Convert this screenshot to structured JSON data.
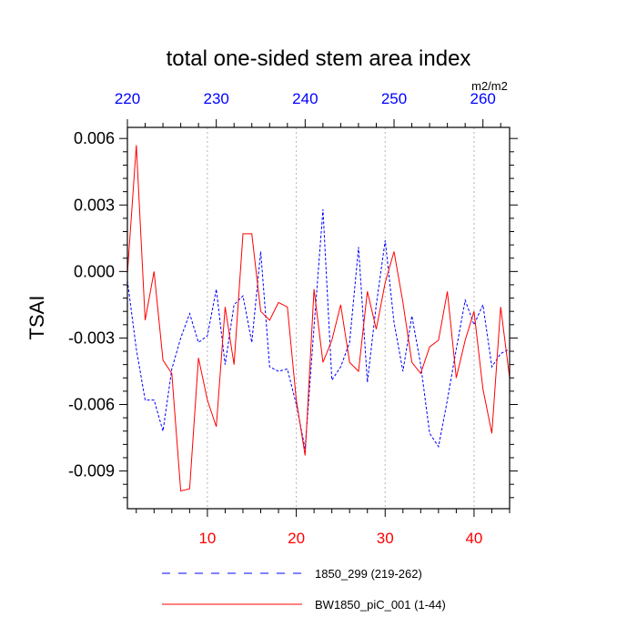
{
  "chart_data": {
    "type": "line",
    "title": "total one-sided stem area index",
    "units": "m2/m2",
    "ylabel": "TSAI",
    "xlabel": "",
    "xlim": [
      1,
      44
    ],
    "ylim": [
      -0.0107,
      0.0065
    ],
    "yticks": [
      0.006,
      0.003,
      0.0,
      -0.003,
      -0.006,
      -0.009
    ],
    "ytick_labels": [
      "0.006",
      "0.003",
      "0.000",
      "-0.003",
      "-0.006",
      "-0.009"
    ],
    "xticks_bottom": [
      10,
      20,
      30,
      40
    ],
    "xtick_labels_bottom": [
      "10",
      "20",
      "30",
      "40"
    ],
    "xticks_top": [
      220,
      230,
      240,
      250,
      260
    ],
    "xtick_labels_top": [
      "220",
      "230",
      "240",
      "250",
      "260"
    ],
    "top_axis_offset": 219,
    "grid": "vertical dotted at bottom major ticks",
    "legend_position": "bottom",
    "colors": {
      "series_blue": "#0000ff",
      "series_red": "#ff0000",
      "bottom_tick_labels": "#ff0000",
      "top_tick_labels": "#0000ff",
      "grid": "#b4b4b4"
    },
    "series": [
      {
        "name": "1850_299 (219-262)",
        "color": "#0000ff",
        "style": "dashed",
        "x": [
          1,
          2,
          3,
          4,
          5,
          6,
          7,
          8,
          9,
          10,
          11,
          12,
          13,
          14,
          15,
          16,
          17,
          18,
          19,
          20,
          21,
          22,
          23,
          24,
          25,
          26,
          27,
          28,
          29,
          30,
          31,
          32,
          33,
          34,
          35,
          36,
          37,
          38,
          39,
          40,
          41,
          42,
          43,
          44
        ],
        "values": [
          -0.0004,
          -0.0035,
          -0.0058,
          -0.0058,
          -0.0072,
          -0.0044,
          -0.003,
          -0.0019,
          -0.0032,
          -0.0029,
          -0.0008,
          -0.0042,
          -0.0015,
          -0.0011,
          -0.0032,
          0.0009,
          -0.0043,
          -0.0045,
          -0.0044,
          -0.006,
          -0.008,
          -0.0025,
          0.0028,
          -0.0049,
          -0.0043,
          -0.0032,
          0.0011,
          -0.005,
          -0.0015,
          0.0014,
          -0.0023,
          -0.0045,
          -0.002,
          -0.0042,
          -0.0073,
          -0.0079,
          -0.0058,
          -0.0035,
          -0.0013,
          -0.0024,
          -0.0015,
          -0.0043,
          -0.0037,
          -0.0035
        ]
      },
      {
        "name": "BW1850_piC_001 (1-44)",
        "color": "#ff0000",
        "style": "solid",
        "x": [
          1,
          2,
          3,
          4,
          5,
          6,
          7,
          8,
          9,
          10,
          11,
          12,
          13,
          14,
          15,
          16,
          17,
          18,
          19,
          20,
          21,
          22,
          23,
          24,
          25,
          26,
          27,
          28,
          29,
          30,
          31,
          32,
          33,
          34,
          35,
          36,
          37,
          38,
          39,
          40,
          41,
          42,
          43,
          44
        ],
        "values": [
          -0.0001,
          0.0057,
          -0.0022,
          0.0,
          -0.004,
          -0.0046,
          -0.0099,
          -0.0098,
          -0.0039,
          -0.0058,
          -0.007,
          -0.0016,
          -0.0042,
          0.0017,
          0.0017,
          -0.0018,
          -0.0022,
          -0.0014,
          -0.0016,
          -0.0058,
          -0.0083,
          -0.0008,
          -0.0041,
          -0.0031,
          -0.0015,
          -0.0041,
          -0.0045,
          -0.0009,
          -0.0026,
          -0.0005,
          0.0009,
          -0.0014,
          -0.0041,
          -0.0046,
          -0.0034,
          -0.0031,
          -0.0009,
          -0.0048,
          -0.0031,
          -0.0018,
          -0.0053,
          -0.0073,
          -0.0016,
          -0.0048
        ]
      }
    ]
  }
}
